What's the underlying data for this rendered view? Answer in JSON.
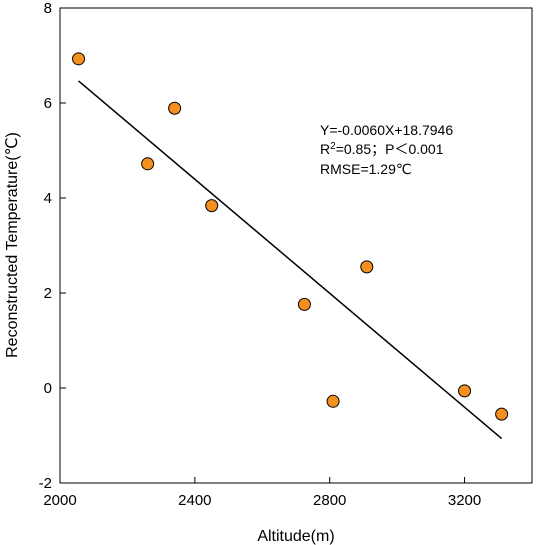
{
  "chart_data": {
    "type": "scatter",
    "title": "",
    "xlabel": "Altitude(m)",
    "ylabel": "Reconstructed Temperature(℃)",
    "xlim": [
      2000,
      3400
    ],
    "ylim": [
      -2,
      8
    ],
    "xticks": [
      2000,
      2400,
      2800,
      3200
    ],
    "yticks": [
      -2,
      0,
      2,
      4,
      6,
      8
    ],
    "grid": false,
    "legend": "none",
    "series": [
      {
        "x": [
          2055,
          2260,
          2340,
          2450,
          2725,
          2810,
          2910,
          3200,
          3310
        ],
        "y": [
          6.93,
          4.72,
          5.89,
          3.84,
          1.76,
          -0.28,
          2.55,
          -0.06,
          -0.55
        ]
      }
    ],
    "fit_line": {
      "slope": -0.006,
      "intercept": 18.7946,
      "x_range": [
        2055,
        3310
      ]
    },
    "annotations": {
      "equation": "Y=-0.0060X+18.7946",
      "r2_r": "R",
      "r2_sup": "2",
      "r2_rest": "=0.85；P＜0.001",
      "rmse": "RMSE=1.29℃"
    },
    "colors": {
      "marker_fill": "#f5901e",
      "marker_stroke": "#000000",
      "line": "#000000",
      "axis": "#000000"
    }
  }
}
